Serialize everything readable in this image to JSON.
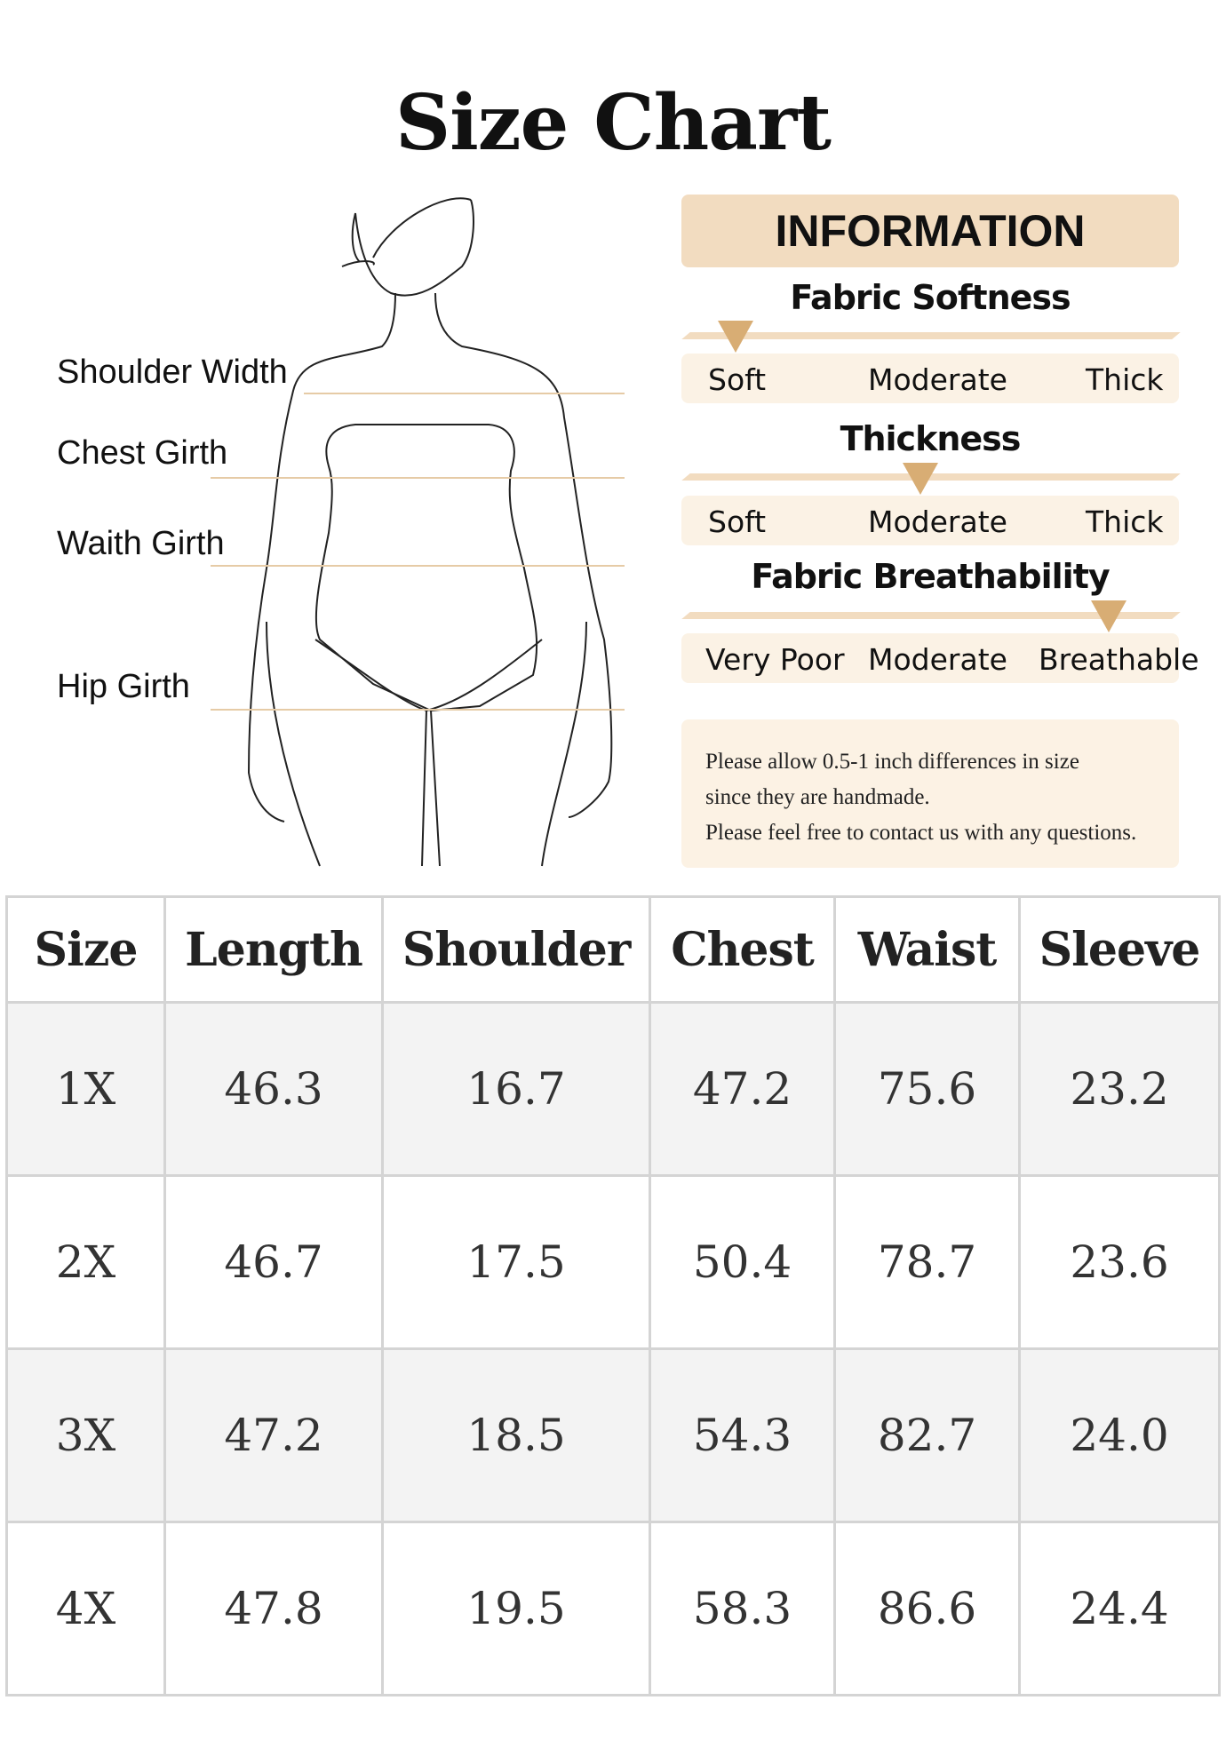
{
  "title": "Size Chart",
  "measurements": [
    "Shoulder Width",
    "Chest Girth",
    "Waith Girth",
    "Hip Girth"
  ],
  "information": {
    "heading": "INFORMATION",
    "scales": [
      {
        "title": "Fabric Softness",
        "labels": [
          "Soft",
          "Moderate",
          "Thick"
        ],
        "selected": "Soft"
      },
      {
        "title": "Thickness",
        "labels": [
          "Soft",
          "Moderate",
          "Thick"
        ],
        "selected": "Moderate"
      },
      {
        "title": "Fabric Breathability",
        "labels": [
          "Very Poor",
          "Moderate",
          "Breathable"
        ],
        "selected": "Breathable"
      }
    ],
    "note": [
      "Please allow 0.5-1 inch differences in size",
      "since they are handmade.",
      "Please feel free to contact us with any questions."
    ],
    "accent": "#d8ad74",
    "panel": "#f2dcc0"
  },
  "table": {
    "headers": [
      "Size",
      "Length",
      "Shoulder",
      "Chest",
      "Waist",
      "Sleeve"
    ],
    "rows": [
      [
        "1X",
        "46.3",
        "16.7",
        "47.2",
        "75.6",
        "23.2"
      ],
      [
        "2X",
        "46.7",
        "17.5",
        "50.4",
        "78.7",
        "23.6"
      ],
      [
        "3X",
        "47.2",
        "18.5",
        "54.3",
        "82.7",
        "24.0"
      ],
      [
        "4X",
        "47.8",
        "19.5",
        "58.3",
        "86.6",
        "24.4"
      ]
    ]
  }
}
